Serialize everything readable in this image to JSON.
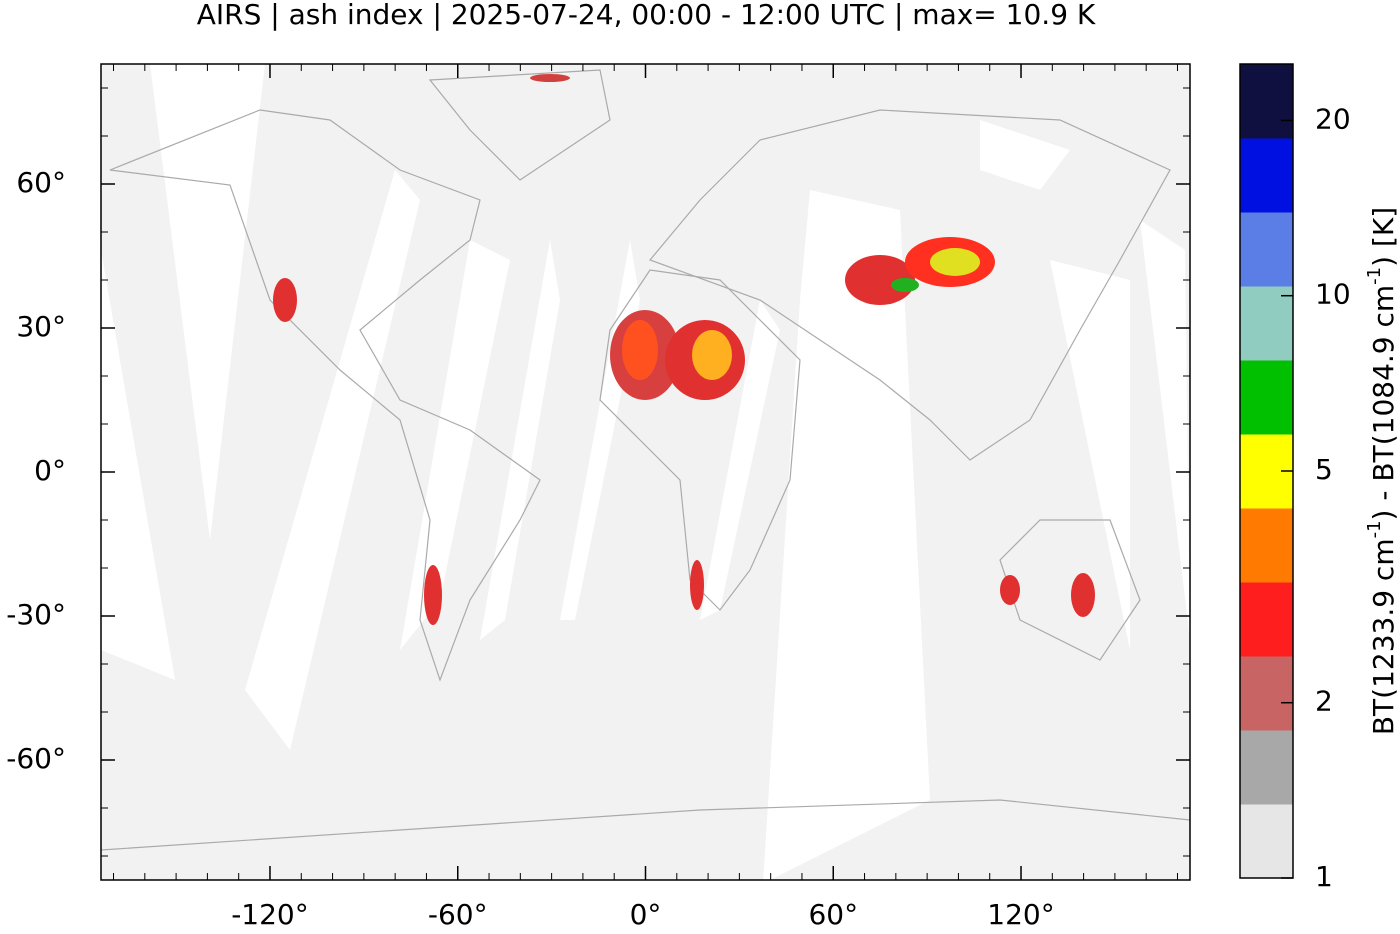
{
  "chart_data": {
    "type": "map",
    "title": "AIRS | ash index | 2025-07-24, 00:00 - 12:00 UTC | max= 10.9 K",
    "xlim": [
      -174,
      174
    ],
    "ylim": [
      -85,
      85
    ],
    "xticks": [
      {
        "value": -120,
        "label": "-120°"
      },
      {
        "value": -60,
        "label": "-60°"
      },
      {
        "value": 0,
        "label": "0°"
      },
      {
        "value": 60,
        "label": "60°"
      },
      {
        "value": 120,
        "label": "120°"
      }
    ],
    "yticks": [
      {
        "value": 60,
        "label": "60°"
      },
      {
        "value": 30,
        "label": "30°"
      },
      {
        "value": 0,
        "label": "0°"
      },
      {
        "value": -30,
        "label": "-30°"
      },
      {
        "value": -60,
        "label": "-60°"
      }
    ],
    "minor_tick_step": 10,
    "colorbar": {
      "log": true,
      "lim": [
        1,
        25
      ],
      "ticks": [
        1,
        2,
        5,
        10,
        20
      ],
      "label_parts": [
        "BT(1233.9 cm",
        "-1",
        ") - BT(1084.9 cm",
        "-1",
        ") [K]"
      ],
      "colormap": [
        "#e6e6e6",
        "#a8a8a8",
        "#c86464",
        "#ff1e1e",
        "#ff7a00",
        "#ffff00",
        "#00c000",
        "#90ccc0",
        "#5a7ee6",
        "#0010e0",
        "#101040"
      ]
    }
  }
}
